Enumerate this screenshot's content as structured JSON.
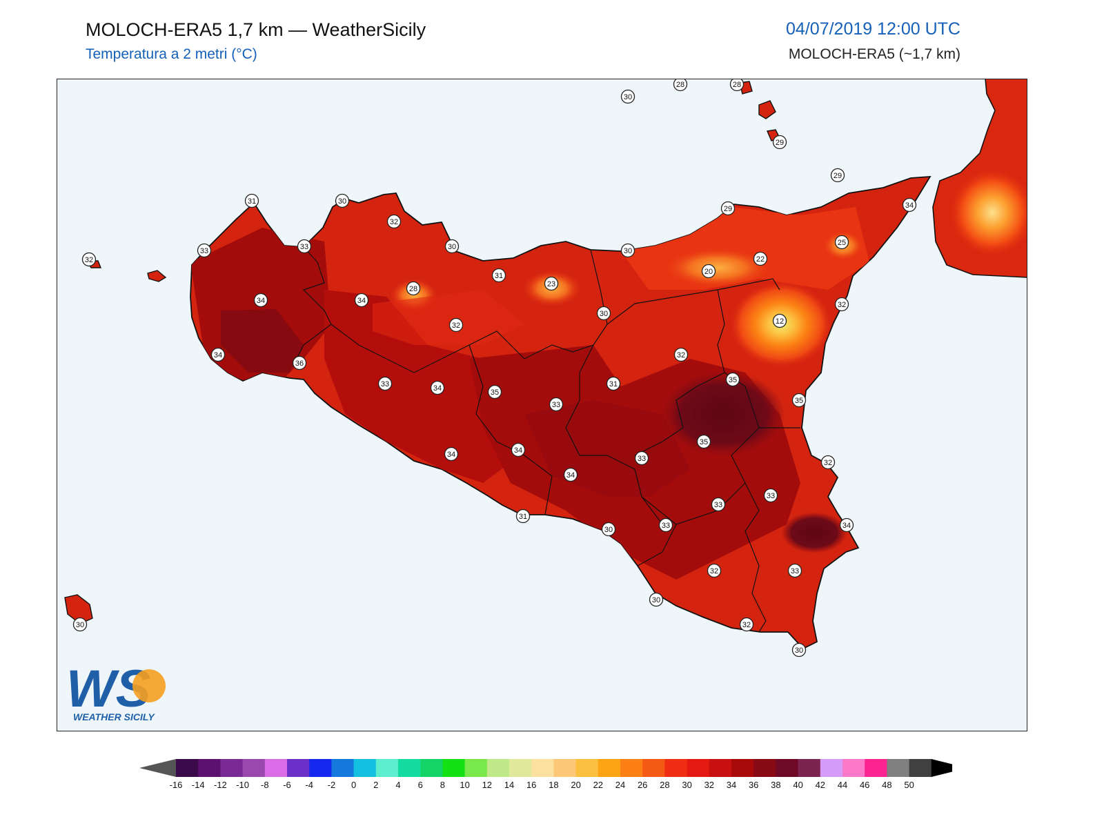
{
  "header": {
    "title": "MOLOCH-ERA5 1,7 km — WeatherSicily",
    "subtitle": "Temperatura a 2 metri (°C)",
    "datetime": "04/07/2019 12:00 UTC",
    "model": "MOLOCH-ERA5 (~1,7 km)"
  },
  "logo": {
    "text": "WS",
    "name": "WEATHER SICILY"
  },
  "colors": {
    "sea": "#eef6fa",
    "land_base": "#d42410",
    "frame": "#222222"
  },
  "station_labels": [
    "30",
    "28",
    "28",
    "29",
    "29",
    "29",
    "34",
    "25",
    "32",
    "12",
    "22",
    "20",
    "30",
    "30",
    "31",
    "32",
    "30",
    "31",
    "33",
    "32",
    "32",
    "34",
    "34",
    "28",
    "31",
    "23",
    "32",
    "30",
    "33",
    "34",
    "36",
    "33",
    "34",
    "35",
    "33",
    "31",
    "35",
    "36",
    "35",
    "34",
    "34",
    "34",
    "33",
    "35",
    "32",
    "33",
    "33",
    "34",
    "31",
    "30",
    "33",
    "33",
    "32",
    "33",
    "30",
    "32",
    "30",
    "30"
  ],
  "colorbar": {
    "ticks": [
      "-16",
      "-14",
      "-12",
      "-10",
      "-8",
      "-6",
      "-4",
      "-2",
      "0",
      "2",
      "4",
      "6",
      "8",
      "10",
      "12",
      "14",
      "16",
      "18",
      "20",
      "22",
      "24",
      "26",
      "28",
      "30",
      "32",
      "34",
      "36",
      "38",
      "40",
      "42",
      "44",
      "46",
      "48",
      "50"
    ],
    "colors": [
      "#3a0a4a",
      "#5c1070",
      "#7a2a94",
      "#9a48ae",
      "#da6ce8",
      "#6a30c8",
      "#1428f0",
      "#1478dc",
      "#14c0e0",
      "#5ceece",
      "#14dca0",
      "#14d468",
      "#14e014",
      "#78e84a",
      "#c0ea8a",
      "#e0e89c",
      "#fce0a0",
      "#fcc878",
      "#fcc040",
      "#fca414",
      "#fc8014",
      "#f45a14",
      "#f02e14",
      "#e41a12",
      "#c81010",
      "#a80a0a",
      "#880a14",
      "#6e0a28",
      "#7c2450",
      "#d49cf8",
      "#fc78c8",
      "#fc2490",
      "#808080",
      "#404040"
    ]
  }
}
